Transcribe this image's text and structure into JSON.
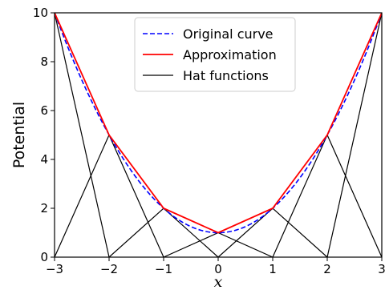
{
  "chart_data": {
    "type": "line",
    "xlabel": "x",
    "ylabel": "Potential",
    "xlim": [
      -3,
      3
    ],
    "ylim": [
      0,
      10
    ],
    "xticks": [
      -3,
      -2,
      -1,
      0,
      1,
      2,
      3
    ],
    "xtick_labels": [
      "−3",
      "−2",
      "−1",
      "0",
      "1",
      "2",
      "3"
    ],
    "yticks": [
      0,
      2,
      4,
      6,
      8,
      10
    ],
    "ytick_labels": [
      "0",
      "2",
      "4",
      "6",
      "8",
      "10"
    ],
    "grid": false,
    "legend_position": "top-center",
    "legend": [
      {
        "label": "Original curve",
        "color": "#0000ff",
        "style": "dashed"
      },
      {
        "label": "Approximation",
        "color": "#ff0000",
        "style": "solid"
      },
      {
        "label": "Hat functions",
        "color": "#000000",
        "style": "solid"
      }
    ],
    "series": [
      {
        "name": "Original curve",
        "color": "#0000ff",
        "style": "dashed",
        "function": "x^2 + 1",
        "x": [
          -3,
          -2.5,
          -2,
          -1.5,
          -1,
          -0.5,
          0,
          0.5,
          1,
          1.5,
          2,
          2.5,
          3
        ],
        "y": [
          10,
          7.25,
          5,
          3.25,
          2,
          1.25,
          1,
          1.25,
          2,
          3.25,
          5,
          7.25,
          10
        ]
      },
      {
        "name": "Approximation",
        "color": "#ff0000",
        "style": "solid",
        "x": [
          -3,
          -2,
          -1,
          0,
          1,
          2,
          3
        ],
        "y": [
          10,
          5,
          2,
          1,
          2,
          5,
          10
        ]
      },
      {
        "name": "Hat functions",
        "color": "#000000",
        "style": "solid",
        "nodes": [
          -3,
          -2,
          -1,
          0,
          1,
          2,
          3
        ],
        "heights": [
          10,
          5,
          2,
          1,
          2,
          5,
          10
        ]
      }
    ]
  }
}
